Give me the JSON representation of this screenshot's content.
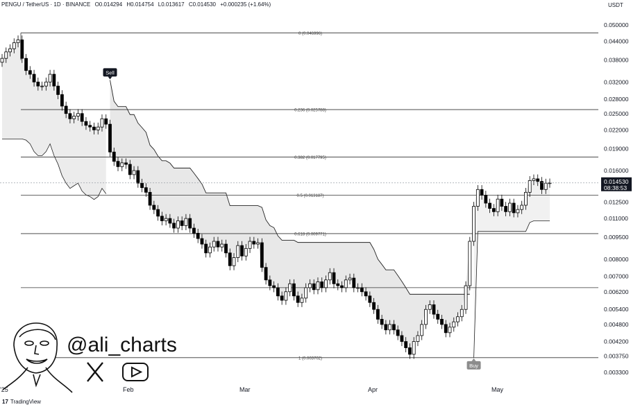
{
  "header": {
    "symbol": "PENGU / TetherUS · 1D · BINANCE",
    "open": "O0.014294",
    "high": "H0.014754",
    "low": "L0.013617",
    "close": "C0.014530",
    "change": "+0.000235 (+1.64%)"
  },
  "currency": "USDT",
  "brand": {
    "logo": "17",
    "name": "TradingView"
  },
  "watermark": {
    "handle": "@ali_charts",
    "icons": [
      "x-logo-icon",
      "youtube-play-icon"
    ]
  },
  "price_tag": {
    "price": "0.014530",
    "countdown": "08:38:53"
  },
  "markers": {
    "sell": "Sell",
    "buy": "Buy"
  },
  "colors": {
    "candle": "#000000",
    "fill": "#e8e8e8",
    "line": "#222222",
    "marker_sell": "#131722",
    "marker_buy": "#8c8c8c"
  },
  "chart_data": {
    "type": "candlestick",
    "scale": "log",
    "y_ticks": [
      "0.050000",
      "0.044000",
      "0.038000",
      "0.032000",
      "0.028000",
      "0.025000",
      "0.022000",
      "0.019000",
      "0.016000",
      "0.014530",
      "0.012500",
      "0.011000",
      "0.009500",
      "0.008000",
      "0.007000",
      "0.006200",
      "0.005400",
      "0.004800",
      "0.004200",
      "0.003750",
      "0.003300"
    ],
    "y_tick_values": [
      0.05,
      0.044,
      0.038,
      0.032,
      0.028,
      0.025,
      0.022,
      0.019,
      0.016,
      0.01453,
      0.0125,
      0.011,
      0.0095,
      0.008,
      0.007,
      0.0062,
      0.0054,
      0.0048,
      0.0042,
      0.00375,
      0.0033
    ],
    "x_ticks": [
      "'25",
      "Feb",
      "Mar",
      "Apr",
      "May"
    ],
    "fib_levels": [
      {
        "label": "0 (0.046996)",
        "value": 0.046996
      },
      {
        "label": "0.236 (0.025788)",
        "value": 0.025788
      },
      {
        "label": "0.382 (0.017795)",
        "value": 0.017795
      },
      {
        "label": "0.5 (0.013187)",
        "value": 0.013187
      },
      {
        "label": "0.618 (0.009771)",
        "value": 0.009771
      },
      {
        "label": "",
        "value": 0.0064
      },
      {
        "label": "1 (0.003702)",
        "value": 0.003702
      }
    ],
    "candles_close": [
      0.0385,
      0.0405,
      0.0415,
      0.0435,
      0.0445,
      0.0385,
      0.035,
      0.034,
      0.032,
      0.031,
      0.031,
      0.032,
      0.034,
      0.031,
      0.029,
      0.0265,
      0.025,
      0.024,
      0.0245,
      0.025,
      0.0235,
      0.0228,
      0.0225,
      0.022,
      0.0225,
      0.024,
      0.023,
      0.0185,
      0.0172,
      0.0165,
      0.017,
      0.0168,
      0.0155,
      0.016,
      0.0145,
      0.014,
      0.0135,
      0.0122,
      0.0118,
      0.0112,
      0.0108,
      0.011,
      0.0106,
      0.0102,
      0.0108,
      0.0104,
      0.011,
      0.0102,
      0.0098,
      0.0094,
      0.009,
      0.0084,
      0.0088,
      0.0092,
      0.0088,
      0.009,
      0.0084,
      0.0076,
      0.0081,
      0.0089,
      0.0082,
      0.0087,
      0.0092,
      0.009,
      0.0091,
      0.0075,
      0.0068,
      0.0065,
      0.0064,
      0.006,
      0.0058,
      0.0062,
      0.0066,
      0.006,
      0.0057,
      0.0059,
      0.0064,
      0.0066,
      0.0063,
      0.0067,
      0.0064,
      0.0068,
      0.0072,
      0.0066,
      0.0065,
      0.0064,
      0.0068,
      0.0069,
      0.0064,
      0.0064,
      0.0062,
      0.006,
      0.0057,
      0.0054,
      0.005,
      0.0048,
      0.0046,
      0.0048,
      0.0046,
      0.0044,
      0.0042,
      0.004,
      0.0038,
      0.0042,
      0.0044,
      0.0048,
      0.0054,
      0.0056,
      0.0052,
      0.005,
      0.0048,
      0.0045,
      0.0047,
      0.0049,
      0.0051,
      0.0054,
      0.0065,
      0.0092,
      0.0121,
      0.0138,
      0.0132,
      0.0124,
      0.0119,
      0.0116,
      0.0128,
      0.0121,
      0.0116,
      0.0124,
      0.0115,
      0.0118,
      0.0122,
      0.0135,
      0.0148,
      0.015,
      0.0147,
      0.0138,
      0.0145,
      0.01453
    ]
  }
}
